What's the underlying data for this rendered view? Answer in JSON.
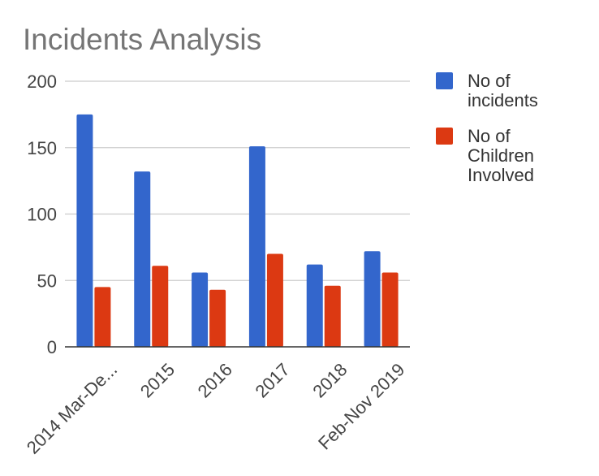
{
  "chart_data": {
    "type": "bar",
    "title": "Incidents Analysis",
    "xlabel": "",
    "ylabel": "",
    "categories": [
      "2014 Mar-De...",
      "2015",
      "2016",
      "2017",
      "2018",
      "Feb-Nov 2019"
    ],
    "series": [
      {
        "name": "No of incidents",
        "legend_lines": [
          "No of",
          "incidents"
        ],
        "color": "#3366cc",
        "values": [
          175,
          132,
          56,
          151,
          62,
          72
        ]
      },
      {
        "name": "No of Children Involved",
        "legend_lines": [
          "No of",
          "Children",
          "Involved"
        ],
        "color": "#dc3912",
        "values": [
          45,
          61,
          43,
          70,
          46,
          56
        ]
      }
    ],
    "ylim": [
      0,
      200
    ],
    "yticks": [
      "0",
      "50",
      "100",
      "150",
      "200"
    ],
    "grid": true,
    "legend_position": "right"
  }
}
